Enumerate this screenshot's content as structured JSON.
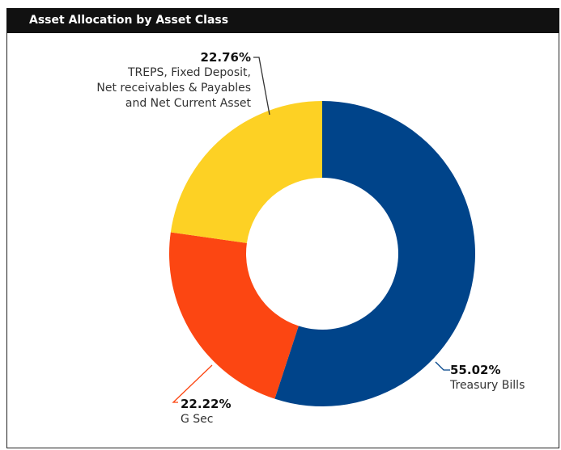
{
  "title": "Asset Allocation by Asset Class",
  "chart_data": {
    "type": "donut",
    "categories": [
      "Treasury Bills",
      "G Sec",
      "TREPS, Fixed Deposit,\nNet receivables & Payables\nand Net Current Asset"
    ],
    "values": [
      55.02,
      22.22,
      22.76
    ],
    "value_labels": [
      "55.02%",
      "22.22%",
      "22.76%"
    ],
    "colors": [
      "#00448a",
      "#fc4612",
      "#fdd124"
    ]
  }
}
